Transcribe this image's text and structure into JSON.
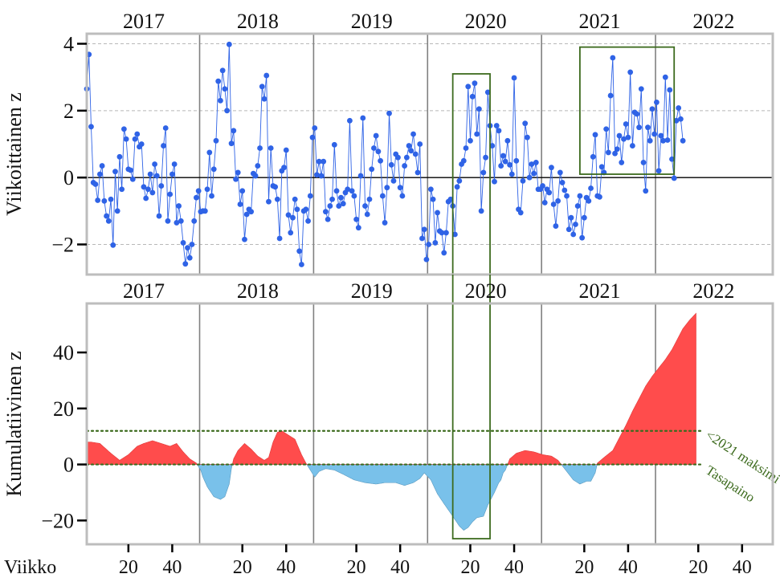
{
  "chart_data": [
    {
      "type": "line",
      "panel": "top",
      "ylabel": "Viikoittainen z",
      "ylim": [
        -2.9,
        4.3
      ],
      "yticks": [
        -2,
        0,
        2,
        4
      ],
      "ytick_labels": [
        "−2",
        "0",
        "2",
        "4"
      ],
      "year_labels": [
        "2017",
        "2018",
        "2019",
        "2020",
        "2021",
        "2022"
      ],
      "year_starts": [
        1,
        53,
        105,
        157,
        209,
        261
      ],
      "xlim": [
        1,
        314
      ],
      "grid": "horizontal dashed",
      "series": [
        {
          "color": "#2f63e6",
          "x_start": 1,
          "values": [
            2.65,
            3.68,
            1.52,
            -0.15,
            -0.2,
            -0.68,
            0.1,
            0.35,
            -0.7,
            -1.15,
            -1.3,
            -0.65,
            -2.02,
            0.18,
            -1.0,
            0.62,
            -0.35,
            1.45,
            1.15,
            0.25,
            0.22,
            -0.05,
            1.15,
            1.3,
            0.92,
            1.0,
            -0.28,
            -0.62,
            -0.35,
            0.1,
            -0.45,
            0.4,
            0.05,
            -1.15,
            -0.25,
            0.95,
            1.48,
            -1.3,
            -0.5,
            0.1,
            0.4,
            -1.35,
            -0.85,
            -1.3,
            -1.95,
            -2.58,
            -2.1,
            -2.4,
            -2.0,
            -1.3,
            -0.6,
            -0.4,
            -1.02,
            -1.0,
            -1.0,
            -0.35,
            0.75,
            -0.55,
            0.25,
            1.1,
            2.88,
            2.3,
            3.2,
            2.65,
            2.0,
            3.98,
            1.02,
            1.4,
            -0.05,
            0.15,
            -0.8,
            -0.4,
            -1.85,
            -1.1,
            -0.95,
            -1.02,
            0.12,
            0.05,
            0.35,
            0.88,
            2.72,
            2.35,
            3.05,
            -0.72,
            0.88,
            -0.25,
            -0.28,
            -0.65,
            -1.82,
            0.2,
            0.3,
            0.82,
            -1.12,
            -1.65,
            -1.2,
            -0.65,
            -0.95,
            -2.2,
            -2.6,
            -1.0,
            -0.95,
            -1.3,
            -0.55,
            1.2,
            1.48,
            0.08,
            0.48,
            0.05,
            0.48,
            -1.02,
            -1.25,
            -0.85,
            -0.65,
            0.98,
            -0.4,
            -0.85,
            -0.6,
            -0.78,
            -0.45,
            -0.35,
            1.7,
            -0.4,
            -0.55,
            -1.25,
            -1.5,
            0.05,
            1.78,
            -0.85,
            -1.1,
            -0.65,
            0.25,
            0.88,
            1.25,
            0.78,
            0.5,
            -0.55,
            -1.35,
            -0.3,
            1.92,
            0.38,
            -0.1,
            0.7,
            0.6,
            -0.3,
            -0.55,
            0.35,
            0.6,
            0.95,
            0.8,
            1.3,
            0.7,
            0.15,
            1.0,
            -1.82,
            -1.55,
            -2.45,
            -2.0,
            -0.35,
            -0.65,
            -1.95,
            -1.05,
            -1.6,
            -1.65,
            -2.25,
            -1.65,
            -0.72,
            -0.65,
            -0.85,
            -1.7,
            -0.28,
            -0.1,
            0.4,
            0.5,
            0.88,
            2.72,
            1.1,
            2.42,
            2.82,
            1.3,
            2.05,
            -1.0,
            0.15,
            0.6,
            2.55,
            1.55,
            0.95,
            -0.12,
            1.55,
            1.4,
            0.35,
            0.65,
            0.48,
            1.1,
            0.38,
            0.1,
            2.98,
            0.5,
            -0.95,
            -1.05,
            -0.1,
            1.62,
            1.2,
            0.0,
            0.4,
            0.12,
            0.45,
            -0.35,
            -0.35,
            -0.25,
            -0.75,
            -0.35,
            -0.45,
            0.3,
            -0.8,
            -1.45,
            -0.7,
            0.15,
            -0.15,
            -0.38,
            -0.55,
            -1.55,
            -1.2,
            -1.7,
            -1.4,
            -0.85,
            -0.55,
            -1.8,
            -1.2,
            -0.6,
            -0.7,
            -0.32,
            0.62,
            1.28,
            -0.55,
            -0.58,
            0.32,
            0.15,
            1.45,
            0.75,
            2.45,
            3.58,
            0.72,
            0.85,
            1.25,
            0.45,
            1.15,
            1.6,
            1.2,
            3.15,
            0.95,
            1.95,
            1.9,
            1.5,
            2.65,
            0.45,
            -0.4,
            1.5,
            1.1,
            2.05,
            1.3,
            2.25,
            0.2,
            1.25,
            1.1,
            3.0,
            1.12,
            2.62,
            0.55,
            -0.02,
            1.7,
            2.08,
            1.75,
            1.1
          ]
        }
      ]
    },
    {
      "type": "area",
      "panel": "bottom",
      "ylabel": "Kumulatiivinen z",
      "xlabel": "Viikko",
      "ylim": [
        -28.5,
        57.5
      ],
      "yticks": [
        -20,
        0,
        20,
        40
      ],
      "ytick_labels": [
        "−20",
        "0",
        "20",
        "40"
      ],
      "year_labels": [
        "2017",
        "2018",
        "2019",
        "2020",
        "2021",
        "2022"
      ],
      "xlim": [
        1,
        314
      ],
      "xticks": [
        20,
        40,
        72,
        92,
        124,
        144,
        176,
        196,
        228,
        248,
        280,
        300
      ],
      "xtick_labels": [
        "20",
        "40",
        "20",
        "40",
        "20",
        "40",
        "20",
        "40",
        "20",
        "40",
        "20",
        "40"
      ],
      "positive_color": "#ff4c4c",
      "negative_color": "#79c1ea",
      "x_start": 1,
      "keypoints": [
        [
          1,
          8.0
        ],
        [
          3,
          8.0
        ],
        [
          7,
          7.5
        ],
        [
          12,
          4.0
        ],
        [
          16,
          1.5
        ],
        [
          20,
          3.5
        ],
        [
          24,
          6.5
        ],
        [
          27,
          7.5
        ],
        [
          31,
          8.5
        ],
        [
          35,
          7.5
        ],
        [
          39,
          6.5
        ],
        [
          42,
          7.5
        ],
        [
          45,
          4.5
        ],
        [
          48,
          2.0
        ],
        [
          51,
          0.5
        ],
        [
          53,
          -2.0
        ],
        [
          54,
          -4.5
        ],
        [
          56,
          -8.0
        ],
        [
          59,
          -11.5
        ],
        [
          62,
          -12.5
        ],
        [
          64,
          -11.5
        ],
        [
          66,
          -7.0
        ],
        [
          67,
          -1.5
        ],
        [
          68,
          2.0
        ],
        [
          70,
          5.0
        ],
        [
          73,
          7.5
        ],
        [
          76,
          5.5
        ],
        [
          79,
          3.0
        ],
        [
          82,
          1.5
        ],
        [
          84,
          2.5
        ],
        [
          86,
          8.0
        ],
        [
          88,
          11.5
        ],
        [
          90,
          12.0
        ],
        [
          93,
          10.5
        ],
        [
          96,
          9.0
        ],
        [
          99,
          3.5
        ],
        [
          101,
          0.5
        ],
        [
          103,
          -2.0
        ],
        [
          105,
          -4.5
        ],
        [
          107,
          -2.5
        ],
        [
          110,
          -1.5
        ],
        [
          114,
          -2.0
        ],
        [
          118,
          -3.5
        ],
        [
          123,
          -5.5
        ],
        [
          128,
          -6.5
        ],
        [
          133,
          -7.0
        ],
        [
          137,
          -6.5
        ],
        [
          142,
          -6.5
        ],
        [
          146,
          -7.5
        ],
        [
          150,
          -6.5
        ],
        [
          153,
          -5.0
        ],
        [
          155,
          -3.0
        ],
        [
          158,
          -5.5
        ],
        [
          161,
          -10.5
        ],
        [
          164,
          -14.0
        ],
        [
          168,
          -18.5
        ],
        [
          171,
          -22.0
        ],
        [
          173,
          -23.5
        ],
        [
          175,
          -22.5
        ],
        [
          177,
          -20.5
        ],
        [
          179,
          -19.0
        ],
        [
          182,
          -18.5
        ],
        [
          184,
          -14.5
        ],
        [
          187,
          -10.0
        ],
        [
          189,
          -6.5
        ],
        [
          190,
          -5.5
        ],
        [
          191,
          -3.0
        ],
        [
          192,
          -2.0
        ],
        [
          193,
          0.0
        ],
        [
          194,
          2.0
        ],
        [
          197,
          4.0
        ],
        [
          201,
          5.0
        ],
        [
          205,
          4.5
        ],
        [
          209,
          3.5
        ],
        [
          213,
          3.0
        ],
        [
          216,
          1.5
        ],
        [
          218,
          -0.5
        ],
        [
          220,
          -2.5
        ],
        [
          223,
          -5.5
        ],
        [
          226,
          -7.0
        ],
        [
          229,
          -6.0
        ],
        [
          231,
          -6.0
        ],
        [
          233,
          -3.0
        ],
        [
          234,
          0.5
        ],
        [
          237,
          2.5
        ],
        [
          241,
          5.0
        ],
        [
          244,
          9.5
        ],
        [
          247,
          14.0
        ],
        [
          250,
          19.0
        ],
        [
          253,
          23.5
        ],
        [
          256,
          28.0
        ],
        [
          259,
          31.5
        ],
        [
          262,
          34.5
        ],
        [
          265,
          37.5
        ],
        [
          268,
          41.0
        ],
        [
          271,
          45.5
        ],
        [
          273,
          48.5
        ],
        [
          276,
          51.5
        ],
        [
          279,
          54.0
        ]
      ],
      "reference_lines": [
        {
          "y": 12.0,
          "label": "<2021 maksimi",
          "color": "#3d6b1e",
          "style": "dotted"
        },
        {
          "y": 0.0,
          "label": "Tasapaino",
          "color": "#3d6b1e",
          "style": "dotted"
        }
      ]
    }
  ],
  "highlight_boxes": [
    {
      "panel": "both",
      "x_range": [
        168,
        185
      ],
      "color": "#3d6b1e"
    },
    {
      "panel": "top",
      "x_range": [
        226,
        269
      ],
      "y_range": [
        0.1,
        3.9
      ],
      "color": "#3d6b1e"
    }
  ]
}
